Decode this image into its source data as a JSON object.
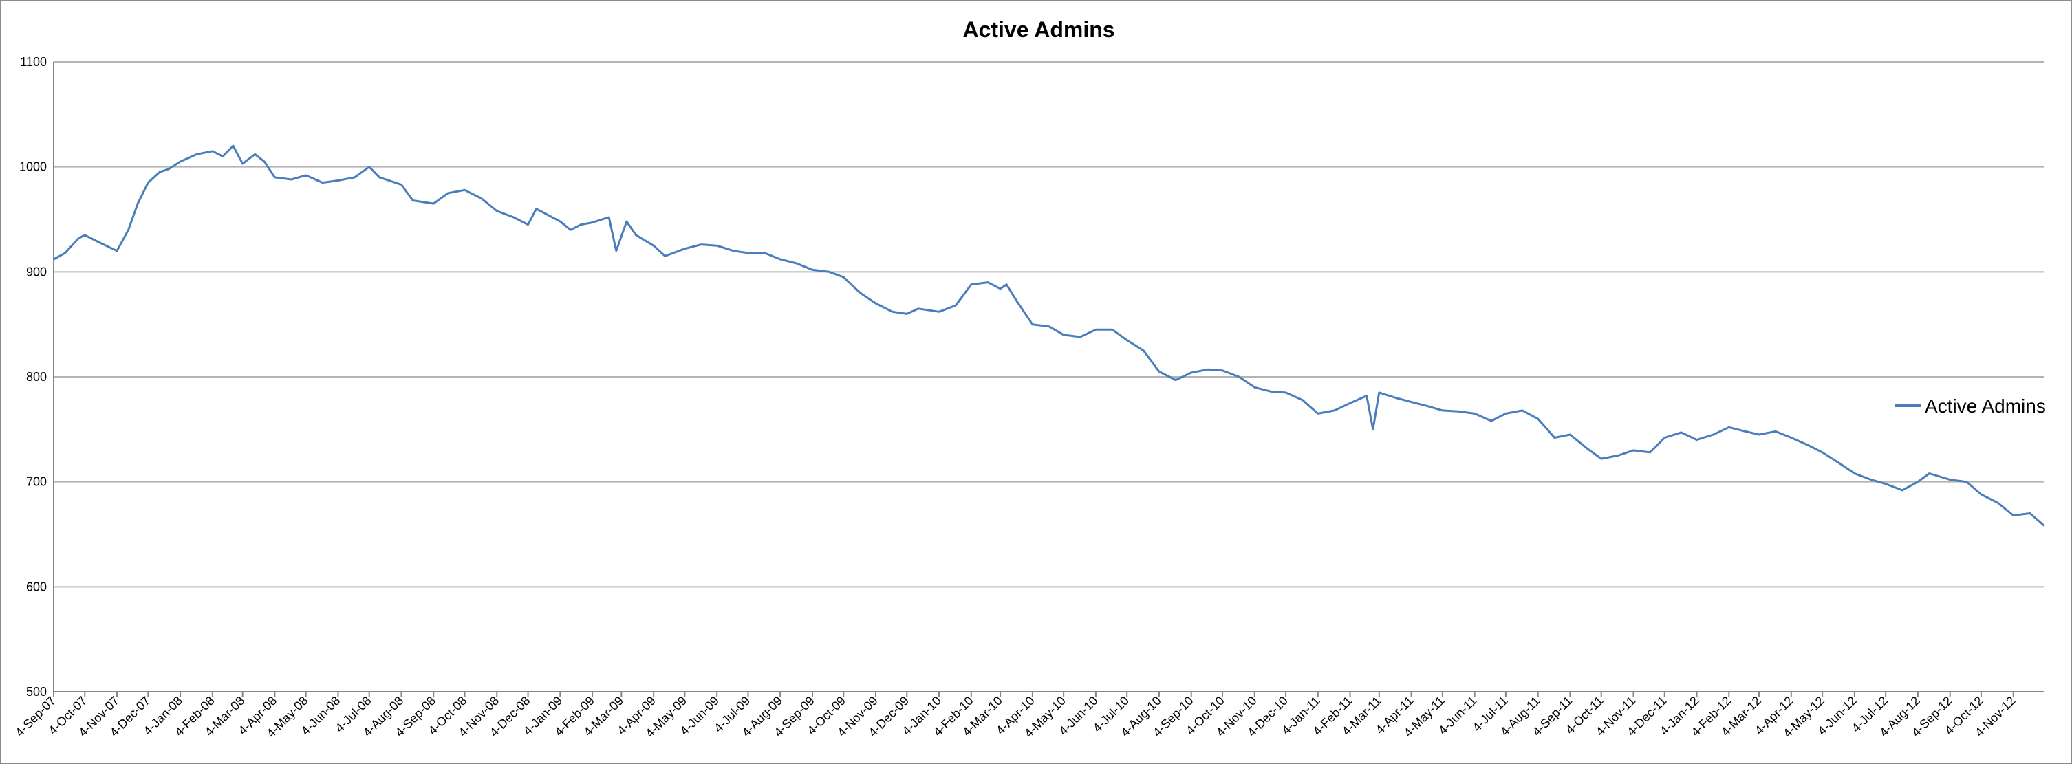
{
  "chart_data": {
    "type": "line",
    "title": "Active Admins",
    "xlabel": "",
    "ylabel": "",
    "ylim": [
      500,
      1100
    ],
    "yticks": [
      "500",
      "600",
      "700",
      "800",
      "900",
      "1000",
      "1100"
    ],
    "grid": true,
    "legend_position": "right",
    "x_tick_labels": [
      "4-Sep-07",
      "4-Oct-07",
      "4-Nov-07",
      "4-Dec-07",
      "4-Jan-08",
      "4-Feb-08",
      "4-Mar-08",
      "4-Apr-08",
      "4-May-08",
      "4-Jun-08",
      "4-Jul-08",
      "4-Aug-08",
      "4-Sep-08",
      "4-Oct-08",
      "4-Nov-08",
      "4-Dec-08",
      "4-Jan-09",
      "4-Feb-09",
      "4-Mar-09",
      "4-Apr-09",
      "4-May-09",
      "4-Jun-09",
      "4-Jul-09",
      "4-Aug-09",
      "4-Sep-09",
      "4-Oct-09",
      "4-Nov-09",
      "4-Dec-09",
      "4-Jan-10",
      "4-Feb-10",
      "4-Mar-10",
      "4-Apr-10",
      "4-May-10",
      "4-Jun-10",
      "4-Jul-10",
      "4-Aug-10",
      "4-Sep-10",
      "4-Oct-10",
      "4-Nov-10",
      "4-Dec-10",
      "4-Jan-11",
      "4-Feb-11",
      "4-Mar-11",
      "4-Apr-11",
      "4-May-11",
      "4-Jun-11",
      "4-Jul-11",
      "4-Aug-11",
      "4-Sep-11",
      "4-Oct-11",
      "4-Nov-11",
      "4-Dec-11",
      "4-Jan-12",
      "4-Feb-12",
      "4-Mar-12",
      "4-Apr-12",
      "4-May-12",
      "4-Jun-12",
      "4-Jul-12",
      "4-Aug-12",
      "4-Sep-12",
      "4-Oct-12",
      "4-Nov-12"
    ],
    "series": [
      {
        "name": "Active Admins",
        "color": "#4a7ebb",
        "points": [
          [
            "4-Sep-07",
            912
          ],
          [
            "15-Sep-07",
            918
          ],
          [
            "28-Sep-07",
            932
          ],
          [
            "4-Oct-07",
            935
          ],
          [
            "18-Oct-07",
            928
          ],
          [
            "4-Nov-07",
            920
          ],
          [
            "15-Nov-07",
            940
          ],
          [
            "24-Nov-07",
            965
          ],
          [
            "4-Dec-07",
            985
          ],
          [
            "15-Dec-07",
            995
          ],
          [
            "24-Dec-07",
            998
          ],
          [
            "4-Jan-08",
            1005
          ],
          [
            "20-Jan-08",
            1012
          ],
          [
            "4-Feb-08",
            1015
          ],
          [
            "14-Feb-08",
            1010
          ],
          [
            "24-Feb-08",
            1020
          ],
          [
            "4-Mar-08",
            1003
          ],
          [
            "16-Mar-08",
            1012
          ],
          [
            "25-Mar-08",
            1005
          ],
          [
            "4-Apr-08",
            990
          ],
          [
            "20-Apr-08",
            988
          ],
          [
            "4-May-08",
            992
          ],
          [
            "20-May-08",
            985
          ],
          [
            "4-Jun-08",
            987
          ],
          [
            "20-Jun-08",
            990
          ],
          [
            "4-Jul-08",
            1000
          ],
          [
            "14-Jul-08",
            990
          ],
          [
            "4-Aug-08",
            983
          ],
          [
            "15-Aug-08",
            968
          ],
          [
            "4-Sep-08",
            965
          ],
          [
            "18-Sep-08",
            975
          ],
          [
            "4-Oct-08",
            978
          ],
          [
            "20-Oct-08",
            970
          ],
          [
            "4-Nov-08",
            958
          ],
          [
            "20-Nov-08",
            952
          ],
          [
            "4-Dec-08",
            945
          ],
          [
            "12-Dec-08",
            960
          ],
          [
            "4-Jan-09",
            948
          ],
          [
            "14-Jan-09",
            940
          ],
          [
            "24-Jan-09",
            945
          ],
          [
            "4-Feb-09",
            947
          ],
          [
            "20-Feb-09",
            952
          ],
          [
            "27-Feb-09",
            920
          ],
          [
            "9-Mar-09",
            948
          ],
          [
            "18-Mar-09",
            935
          ],
          [
            "4-Apr-09",
            925
          ],
          [
            "15-Apr-09",
            915
          ],
          [
            "4-May-09",
            922
          ],
          [
            "20-May-09",
            926
          ],
          [
            "4-Jun-09",
            925
          ],
          [
            "20-Jun-09",
            920
          ],
          [
            "4-Jul-09",
            918
          ],
          [
            "20-Jul-09",
            918
          ],
          [
            "4-Aug-09",
            912
          ],
          [
            "20-Aug-09",
            908
          ],
          [
            "4-Sep-09",
            902
          ],
          [
            "20-Sep-09",
            900
          ],
          [
            "4-Oct-09",
            895
          ],
          [
            "20-Oct-09",
            880
          ],
          [
            "4-Nov-09",
            870
          ],
          [
            "20-Nov-09",
            862
          ],
          [
            "4-Dec-09",
            860
          ],
          [
            "15-Dec-09",
            865
          ],
          [
            "4-Jan-10",
            862
          ],
          [
            "20-Jan-10",
            868
          ],
          [
            "4-Feb-10",
            888
          ],
          [
            "20-Feb-10",
            890
          ],
          [
            "4-Mar-10",
            884
          ],
          [
            "10-Mar-10",
            888
          ],
          [
            "20-Mar-10",
            872
          ],
          [
            "4-Apr-10",
            850
          ],
          [
            "20-Apr-10",
            848
          ],
          [
            "4-May-10",
            840
          ],
          [
            "20-May-10",
            838
          ],
          [
            "4-Jun-10",
            845
          ],
          [
            "20-Jun-10",
            845
          ],
          [
            "4-Jul-10",
            835
          ],
          [
            "20-Jul-10",
            825
          ],
          [
            "4-Aug-10",
            805
          ],
          [
            "20-Aug-10",
            797
          ],
          [
            "4-Sep-10",
            804
          ],
          [
            "20-Sep-10",
            807
          ],
          [
            "4-Oct-10",
            806
          ],
          [
            "20-Oct-10",
            800
          ],
          [
            "4-Nov-10",
            790
          ],
          [
            "20-Nov-10",
            786
          ],
          [
            "4-Dec-10",
            785
          ],
          [
            "20-Dec-10",
            778
          ],
          [
            "4-Jan-11",
            765
          ],
          [
            "20-Jan-11",
            768
          ],
          [
            "4-Feb-11",
            775
          ],
          [
            "20-Feb-11",
            782
          ],
          [
            "26-Feb-11",
            750
          ],
          [
            "4-Mar-11",
            785
          ],
          [
            "20-Mar-11",
            780
          ],
          [
            "4-Apr-11",
            776
          ],
          [
            "20-Apr-11",
            772
          ],
          [
            "4-May-11",
            768
          ],
          [
            "20-May-11",
            767
          ],
          [
            "4-Jun-11",
            765
          ],
          [
            "20-Jun-11",
            758
          ],
          [
            "4-Jul-11",
            765
          ],
          [
            "20-Jul-11",
            768
          ],
          [
            "4-Aug-11",
            760
          ],
          [
            "20-Aug-11",
            742
          ],
          [
            "4-Sep-11",
            745
          ],
          [
            "20-Sep-11",
            732
          ],
          [
            "4-Oct-11",
            722
          ],
          [
            "20-Oct-11",
            725
          ],
          [
            "4-Nov-11",
            730
          ],
          [
            "20-Nov-11",
            728
          ],
          [
            "4-Dec-11",
            742
          ],
          [
            "20-Dec-11",
            747
          ],
          [
            "4-Jan-12",
            740
          ],
          [
            "20-Jan-12",
            745
          ],
          [
            "4-Feb-12",
            752
          ],
          [
            "20-Feb-12",
            748
          ],
          [
            "4-Mar-12",
            745
          ],
          [
            "20-Mar-12",
            748
          ],
          [
            "4-Apr-12",
            742
          ],
          [
            "20-Apr-12",
            735
          ],
          [
            "4-May-12",
            728
          ],
          [
            "20-May-12",
            718
          ],
          [
            "4-Jun-12",
            708
          ],
          [
            "20-Jun-12",
            702
          ],
          [
            "4-Jul-12",
            698
          ],
          [
            "20-Jul-12",
            692
          ],
          [
            "4-Aug-12",
            700
          ],
          [
            "15-Aug-12",
            708
          ],
          [
            "4-Sep-12",
            702
          ],
          [
            "20-Sep-12",
            700
          ],
          [
            "4-Oct-12",
            688
          ],
          [
            "20-Oct-12",
            680
          ],
          [
            "4-Nov-12",
            668
          ],
          [
            "20-Nov-12",
            670
          ],
          [
            "4-Dec-12",
            658
          ]
        ]
      }
    ]
  }
}
